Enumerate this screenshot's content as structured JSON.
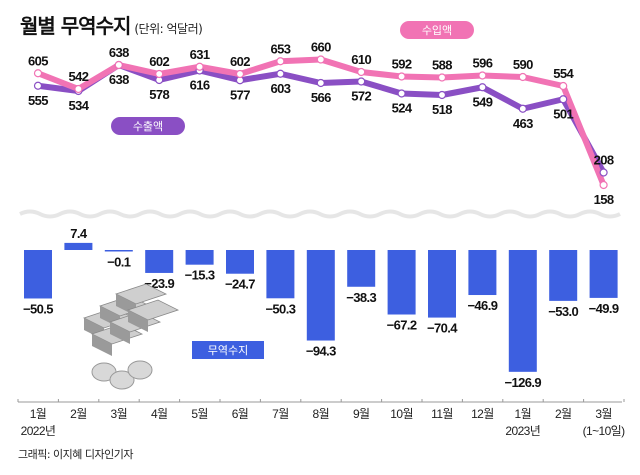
{
  "header": {
    "title": "월별 무역수지",
    "unit": "(단위: 억달러)"
  },
  "credit": "그래픽: 이지혜 디자인기자",
  "colors": {
    "export": "#8a4fc4",
    "import": "#f173b4",
    "balance": "#3d5fe0"
  },
  "chart_data": [
    {
      "type": "line",
      "title": "월별 수출액·수입액",
      "unit": "억달러",
      "categories": [
        "1월",
        "2월",
        "3월",
        "4월",
        "5월",
        "6월",
        "7월",
        "8월",
        "9월",
        "10월",
        "11월",
        "12월",
        "1월",
        "2월",
        "3월"
      ],
      "series": [
        {
          "name": "수출액",
          "values": [
            555,
            534,
            638,
            578,
            616,
            577,
            603,
            566,
            572,
            524,
            518,
            549,
            463,
            501,
            208
          ]
        },
        {
          "name": "수입액",
          "values": [
            605,
            542,
            638,
            602,
            631,
            602,
            653,
            660,
            610,
            592,
            588,
            596,
            590,
            554,
            158
          ]
        }
      ]
    },
    {
      "type": "bar",
      "title": "무역수지",
      "unit": "억달러",
      "categories": [
        "1월",
        "2월",
        "3월",
        "4월",
        "5월",
        "6월",
        "7월",
        "8월",
        "9월",
        "10월",
        "11월",
        "12월",
        "1월",
        "2월",
        "3월"
      ],
      "values": [
        -50.5,
        7.4,
        -0.1,
        -23.9,
        -15.3,
        -24.7,
        -50.3,
        -94.3,
        -38.3,
        -67.2,
        -70.4,
        -46.9,
        -126.9,
        -53.0,
        -49.9
      ],
      "labels": [
        "-50.5",
        "7.4",
        "-0.1",
        "-23.9",
        "-15.3",
        "-24.7",
        "-50.3",
        "-94.3",
        "-38.3",
        "-67.2",
        "-70.4",
        "-46.9",
        "-126.9",
        "-53.0",
        "-49.9"
      ]
    }
  ],
  "x_axis": {
    "months": [
      "1월",
      "2월",
      "3월",
      "4월",
      "5월",
      "6월",
      "7월",
      "8월",
      "9월",
      "10월",
      "11월",
      "12월",
      "1월",
      "2월",
      "3월"
    ],
    "sublabels": {
      "0": "2022년",
      "12": "2023년",
      "14": "(1~10일)"
    }
  }
}
